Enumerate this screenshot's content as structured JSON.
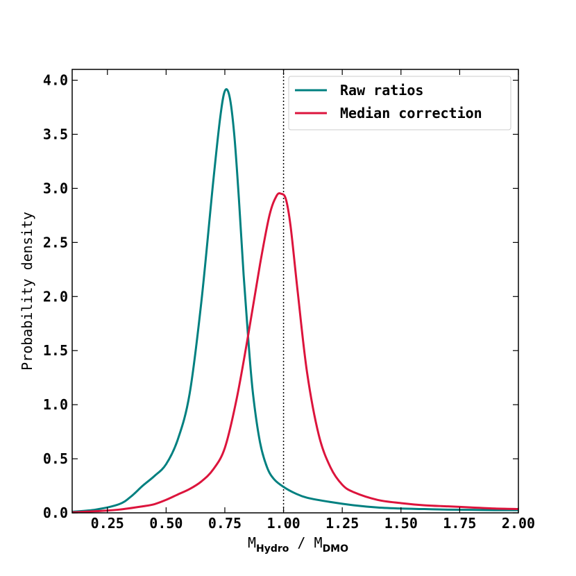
{
  "chart_data": {
    "type": "line",
    "xlabel": {
      "main1": "M",
      "sub1": "Hydro",
      "mid": " / M",
      "sub2": "DMO"
    },
    "ylabel": "Probability density",
    "xlim": [
      0.1,
      2.0
    ],
    "ylim": [
      0.0,
      4.1
    ],
    "xticks": [
      "0.25",
      "0.50",
      "0.75",
      "1.00",
      "1.25",
      "1.50",
      "1.75",
      "2.00"
    ],
    "yticks": [
      "0.0",
      "0.5",
      "1.0",
      "1.5",
      "2.0",
      "2.5",
      "3.0",
      "3.5",
      "4.0"
    ],
    "reference_line_x": 1.0,
    "legend_position": "top-right",
    "series": [
      {
        "name": "Raw ratios",
        "color": "#008080",
        "x": [
          0.1,
          0.2,
          0.3,
          0.35,
          0.4,
          0.45,
          0.5,
          0.55,
          0.6,
          0.65,
          0.7,
          0.73,
          0.75,
          0.77,
          0.79,
          0.81,
          0.83,
          0.85,
          0.87,
          0.9,
          0.93,
          0.96,
          1.0,
          1.05,
          1.1,
          1.2,
          1.3,
          1.4,
          1.5,
          1.6,
          1.7,
          1.8,
          1.9,
          2.0
        ],
        "values": [
          0.01,
          0.03,
          0.08,
          0.15,
          0.25,
          0.34,
          0.45,
          0.68,
          1.1,
          1.95,
          3.05,
          3.65,
          3.9,
          3.85,
          3.5,
          2.9,
          2.2,
          1.6,
          1.1,
          0.65,
          0.42,
          0.31,
          0.24,
          0.18,
          0.14,
          0.1,
          0.07,
          0.05,
          0.04,
          0.035,
          0.03,
          0.028,
          0.025,
          0.025
        ]
      },
      {
        "name": "Median correction",
        "color": "#DC143C",
        "x": [
          0.1,
          0.2,
          0.3,
          0.4,
          0.45,
          0.5,
          0.55,
          0.6,
          0.65,
          0.7,
          0.75,
          0.8,
          0.85,
          0.9,
          0.94,
          0.97,
          0.99,
          1.01,
          1.03,
          1.06,
          1.1,
          1.15,
          1.2,
          1.25,
          1.3,
          1.4,
          1.5,
          1.6,
          1.7,
          1.8,
          1.9,
          2.0
        ],
        "values": [
          0.005,
          0.015,
          0.03,
          0.06,
          0.08,
          0.12,
          0.17,
          0.22,
          0.29,
          0.4,
          0.6,
          1.05,
          1.65,
          2.3,
          2.75,
          2.93,
          2.95,
          2.9,
          2.65,
          2.05,
          1.3,
          0.72,
          0.42,
          0.26,
          0.19,
          0.12,
          0.09,
          0.07,
          0.06,
          0.05,
          0.04,
          0.035
        ]
      }
    ]
  }
}
